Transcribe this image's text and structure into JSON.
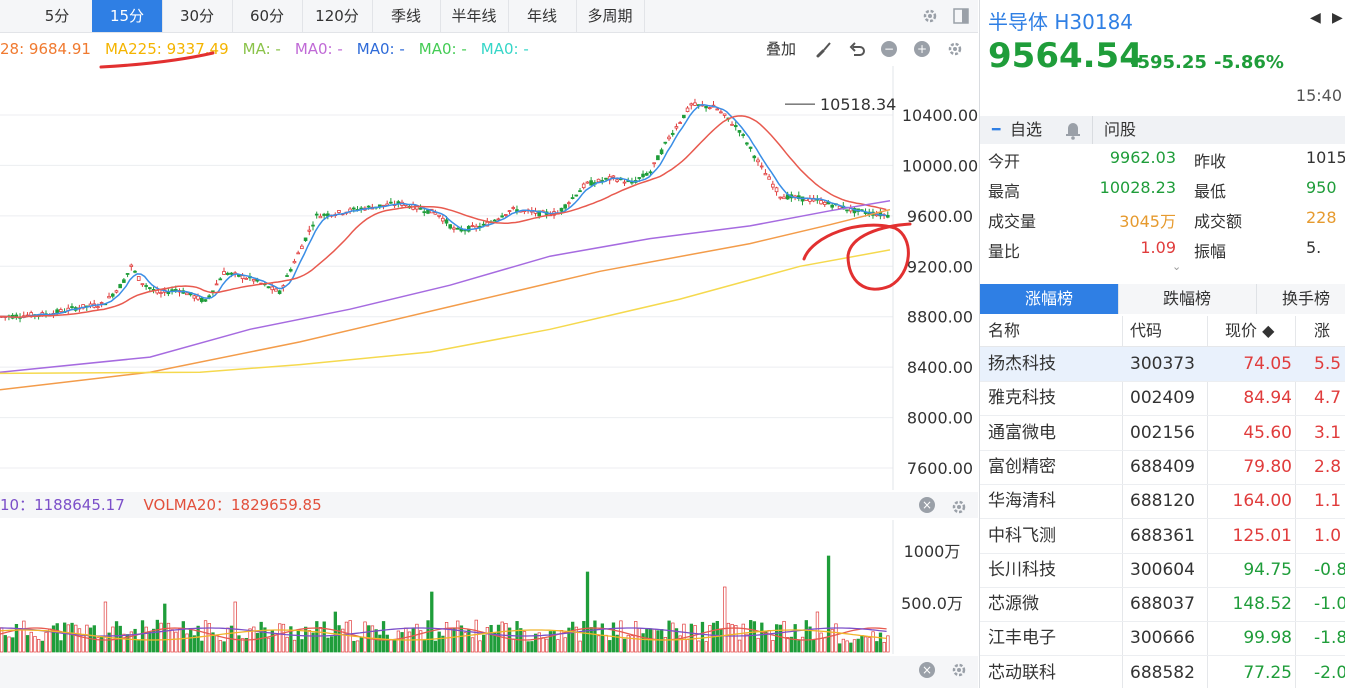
{
  "periods": [
    "5分",
    "15分",
    "30分",
    "60分",
    "120分",
    "季线",
    "半年线",
    "年线",
    "多周期"
  ],
  "active_period": "15分",
  "ma_legend": [
    {
      "text": "28: 9684.91",
      "color": "#f07a30"
    },
    {
      "text": "MA225: 9337.49",
      "color": "#f4b400"
    },
    {
      "text": "MA: -",
      "color": "#8bc34a"
    },
    {
      "text": "MA0: -",
      "color": "#c06ad6"
    },
    {
      "text": "MA0: -",
      "color": "#2f6bd8"
    },
    {
      "text": "MA0: -",
      "color": "#44cc55"
    },
    {
      "text": "MA0: -",
      "color": "#36d6c8"
    }
  ],
  "toolbar": {
    "overlay_label": "叠加"
  },
  "chart_data": {
    "type": "candlestick",
    "y_ticks": [
      "10400.00",
      "10000.00",
      "9600.00",
      "9200.00",
      "8800.00",
      "8400.00",
      "8000.00",
      "7600.00"
    ],
    "ylim": [
      7600,
      10800
    ],
    "high_label": "10518.34",
    "grid": true,
    "vol_ticks": [
      "1000万",
      "500.0万"
    ]
  },
  "volume_legend": {
    "vol10": "10：1188645.17",
    "volma20": "VOLMA20：1829659.85"
  },
  "stock": {
    "name": "半导体 H30184",
    "price": "9564.54",
    "change": "-595.25",
    "change_pct": "-5.86%",
    "time": "15:40"
  },
  "actions": {
    "watch": "自选",
    "ask": "问股"
  },
  "stats": [
    {
      "label": "今开",
      "value": "9962.03",
      "color": "#1f9d3a"
    },
    {
      "label": "昨收",
      "value": "1015"
    },
    {
      "label": "最高",
      "value": "10028.23",
      "color": "#1f9d3a"
    },
    {
      "label": "最低",
      "value": "950",
      "color": "#1f9d3a"
    },
    {
      "label": "成交量",
      "value": "3045万",
      "color": "#e69a2e"
    },
    {
      "label": "成交额",
      "value": "228",
      "color": "#e69a2e"
    },
    {
      "label": "量比",
      "value": "1.09",
      "color": "#e03c3c"
    },
    {
      "label": "振幅",
      "value": "5."
    }
  ],
  "rank_tabs": [
    "涨幅榜",
    "跌幅榜",
    "换手榜"
  ],
  "table_headers": {
    "name": "名称",
    "code": "代码",
    "price": "现价 ◆",
    "chg": "涨"
  },
  "rows": [
    {
      "name": "扬杰科技",
      "code": "300373",
      "price": "74.05",
      "chg": "5.5"
    },
    {
      "name": "雅克科技",
      "code": "002409",
      "price": "84.94",
      "chg": "4.7"
    },
    {
      "name": "通富微电",
      "code": "002156",
      "price": "45.60",
      "chg": "3.1"
    },
    {
      "name": "富创精密",
      "code": "688409",
      "price": "79.80",
      "chg": "2.8"
    },
    {
      "name": "华海清科",
      "code": "688120",
      "price": "164.00",
      "chg": "1.1"
    },
    {
      "name": "中科飞测",
      "code": "688361",
      "price": "125.01",
      "chg": "1.0"
    },
    {
      "name": "长川科技",
      "code": "300604",
      "price": "94.75",
      "chg": "-0.8"
    },
    {
      "name": "芯源微",
      "code": "688037",
      "price": "148.52",
      "chg": "-1.0"
    },
    {
      "name": "江丰电子",
      "code": "300666",
      "price": "99.98",
      "chg": "-1.8"
    },
    {
      "name": "芯动联科",
      "code": "688582",
      "price": "77.25",
      "chg": "-2.0"
    }
  ]
}
